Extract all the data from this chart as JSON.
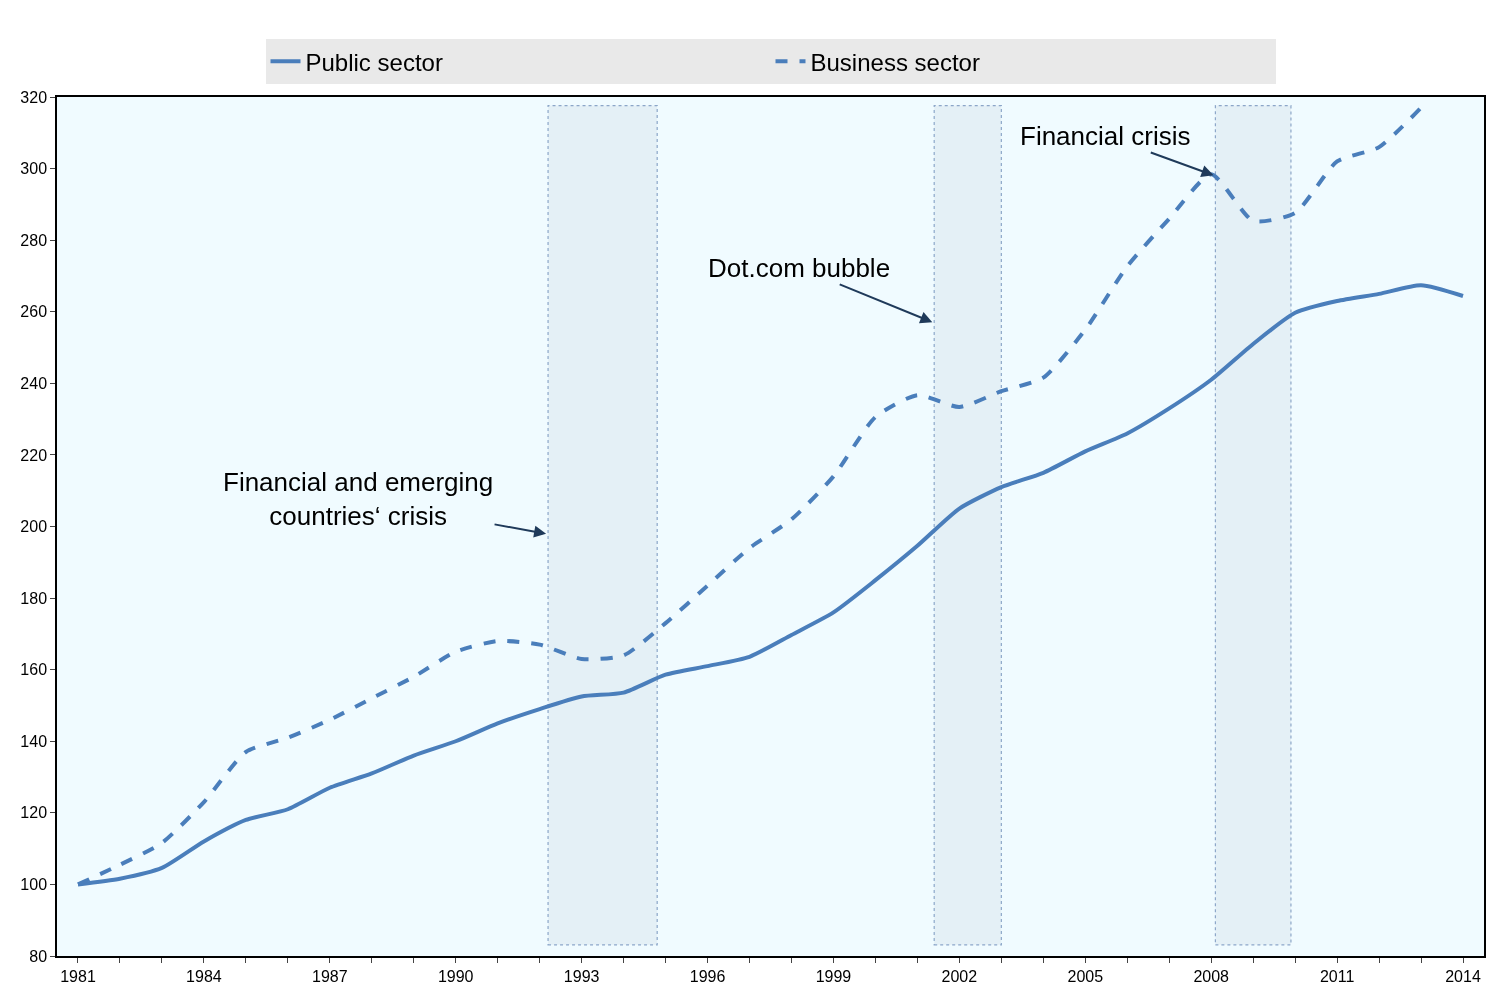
{
  "chart_data": {
    "type": "line",
    "x": [
      1981,
      1982,
      1983,
      1984,
      1985,
      1986,
      1987,
      1988,
      1989,
      1990,
      1991,
      1992,
      1993,
      1994,
      1995,
      1996,
      1997,
      1998,
      1999,
      2000,
      2001,
      2002,
      2003,
      2004,
      2005,
      2006,
      2007,
      2008,
      2009,
      2010,
      2011,
      2012,
      2013,
      2014
    ],
    "series": [
      {
        "name": "Public sector",
        "color": "#4a7ebb",
        "line_style": "solid",
        "values": [
          100,
          101.6,
          104.6,
          112,
          118,
          121,
          127,
          131,
          136,
          140,
          145,
          149,
          152.5,
          153.6,
          158.6,
          161,
          163.6,
          169.7,
          176,
          185,
          194.6,
          205,
          211,
          215,
          221,
          226,
          233,
          241,
          251,
          259.7,
          263,
          265,
          267.4,
          264.4
        ]
      },
      {
        "name": "Business sector",
        "color": "#4a7ebb",
        "line_style": "dashed",
        "values": [
          100,
          105.5,
          111.6,
          123,
          137,
          141,
          146,
          152,
          158,
          165,
          168,
          167,
          163,
          164,
          173,
          183.5,
          194,
          202,
          214,
          230.6,
          236.7,
          233.4,
          237.8,
          241.6,
          255,
          272.7,
          286,
          298.4,
          285.4,
          287.6,
          302,
          306,
          317,
          null
        ]
      }
    ],
    "xlim": [
      1980.5,
      2014.5
    ],
    "xticks": [
      1981,
      {
        "value": 1982,
        "label": null
      },
      {
        "value": 1983,
        "label": null
      },
      1984,
      {
        "value": 1985,
        "label": null
      },
      {
        "value": 1986,
        "label": null
      },
      1987,
      {
        "value": 1988,
        "label": null
      },
      {
        "value": 1989,
        "label": null
      },
      1990,
      {
        "value": 1991,
        "label": null
      },
      {
        "value": 1992,
        "label": null
      },
      1993,
      {
        "value": 1994,
        "label": null
      },
      {
        "value": 1995,
        "label": null
      },
      1996,
      {
        "value": 1997,
        "label": null
      },
      {
        "value": 1998,
        "label": null
      },
      1999,
      {
        "value": 2000,
        "label": null
      },
      {
        "value": 2001,
        "label": null
      },
      2002,
      {
        "value": 2003,
        "label": null
      },
      {
        "value": 2004,
        "label": null
      },
      2005,
      {
        "value": 2006,
        "label": null
      },
      {
        "value": 2007,
        "label": null
      },
      2008,
      {
        "value": 2009,
        "label": null
      },
      {
        "value": 2010,
        "label": null
      },
      2011,
      {
        "value": 2012,
        "label": null
      },
      {
        "value": 2013,
        "label": null
      },
      2014
    ],
    "ylim": [
      80,
      320
    ],
    "yticks": [
      80,
      100,
      120,
      140,
      160,
      180,
      200,
      220,
      240,
      260,
      280,
      300,
      320
    ],
    "bands": [
      {
        "axis": "x",
        "from": 1992.2,
        "to": 1994.8,
        "label": "Financial and emerging\ncountries‘ crisis",
        "color": "#dde9f1"
      },
      {
        "axis": "x",
        "from": 2001.4,
        "to": 2003.0,
        "label": "Dot.com bubble",
        "color": "#dde9f1"
      },
      {
        "axis": "x",
        "from": 2008.1,
        "to": 2009.9,
        "label": "Financial crisis",
        "color": "#dde9f1"
      }
    ],
    "grid": false,
    "legend": "top"
  }
}
